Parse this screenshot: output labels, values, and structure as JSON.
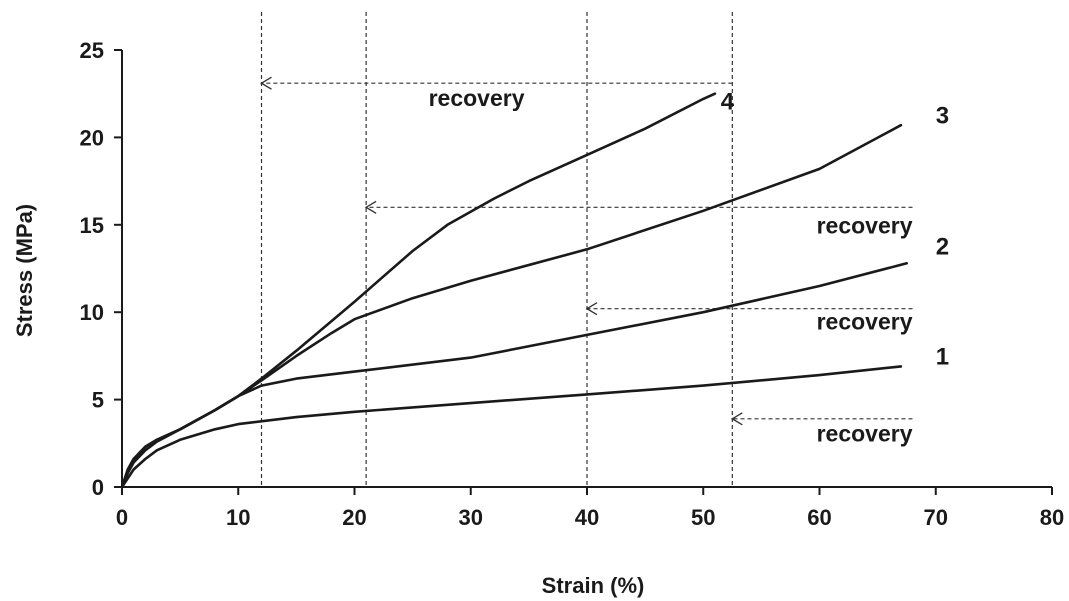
{
  "chart_data": {
    "type": "line",
    "title": "",
    "xlabel": "Strain (%)",
    "ylabel": "Stress (MPa)",
    "xlim": [
      0,
      80
    ],
    "ylim": [
      0,
      25
    ],
    "xticks": [
      0,
      10,
      20,
      30,
      40,
      50,
      60,
      70,
      80
    ],
    "yticks": [
      0,
      5,
      10,
      15,
      20,
      25
    ],
    "xtick_labels": [
      "0",
      "10",
      "20",
      "30",
      "40",
      "50",
      "60",
      "70",
      "80"
    ],
    "ytick_labels": [
      "0",
      "5",
      "10",
      "15",
      "20",
      "25"
    ],
    "grid": false,
    "legend": "none",
    "line_color": "#1a1a1a",
    "series": [
      {
        "name": "1",
        "x": [
          0,
          0.5,
          1,
          2,
          3,
          5,
          8,
          10,
          15,
          20,
          30,
          40,
          50,
          60,
          67
        ],
        "y": [
          0,
          0.5,
          1.0,
          1.6,
          2.1,
          2.7,
          3.3,
          3.6,
          4.0,
          4.3,
          4.8,
          5.3,
          5.8,
          6.4,
          6.9
        ]
      },
      {
        "name": "2",
        "x": [
          0,
          0.5,
          1,
          2,
          3,
          5,
          8,
          10,
          12,
          15,
          20,
          30,
          40,
          50,
          60,
          67.5
        ],
        "y": [
          0,
          0.8,
          1.4,
          2.1,
          2.6,
          3.3,
          4.4,
          5.2,
          5.8,
          6.2,
          6.6,
          7.4,
          8.7,
          10.0,
          11.5,
          12.8
        ]
      },
      {
        "name": "3",
        "x": [
          0,
          0.5,
          1,
          2,
          3,
          5,
          8,
          10,
          12,
          15,
          18,
          20,
          25,
          30,
          40,
          50,
          60,
          67
        ],
        "y": [
          0,
          1.0,
          1.6,
          2.3,
          2.7,
          3.3,
          4.4,
          5.2,
          6.1,
          7.5,
          8.8,
          9.6,
          10.8,
          11.8,
          13.6,
          15.8,
          18.2,
          20.7
        ]
      },
      {
        "name": "4",
        "x": [
          0,
          0.5,
          1,
          2,
          3,
          5,
          8,
          10,
          12,
          15,
          20,
          25,
          28,
          32,
          35,
          40,
          45,
          50,
          51
        ],
        "y": [
          0,
          1.0,
          1.6,
          2.3,
          2.7,
          3.3,
          4.4,
          5.2,
          6.2,
          7.8,
          10.6,
          13.5,
          15.0,
          16.5,
          17.5,
          19.0,
          20.5,
          22.2,
          22.5
        ]
      }
    ],
    "guides": {
      "vertical_lines_x": [
        12,
        21,
        40,
        52.5
      ],
      "recovery_arrows": [
        {
          "from_x": 52.5,
          "to_x": 12,
          "y": 23.1
        },
        {
          "from_x": 68,
          "to_x": 21,
          "y": 16.0
        },
        {
          "from_x": 68,
          "to_x": 40,
          "y": 10.2
        },
        {
          "from_x": 68,
          "to_x": 52.5,
          "y": 3.9
        }
      ]
    },
    "annotations": [
      {
        "text": "recovery",
        "x": 30.5,
        "y": 21.8,
        "anchor": "middle"
      },
      {
        "text": "recovery",
        "x": 68,
        "y": 14.5,
        "anchor": "end"
      },
      {
        "text": "recovery",
        "x": 68,
        "y": 9.0,
        "anchor": "end"
      },
      {
        "text": "recovery",
        "x": 68,
        "y": 2.6,
        "anchor": "end"
      }
    ],
    "series_labels": [
      {
        "text": "1",
        "x": 70,
        "y": 7.0
      },
      {
        "text": "2",
        "x": 70,
        "y": 13.3
      },
      {
        "text": "3",
        "x": 70,
        "y": 20.8
      },
      {
        "text": "4",
        "x": 51.5,
        "y": 21.6
      }
    ]
  }
}
